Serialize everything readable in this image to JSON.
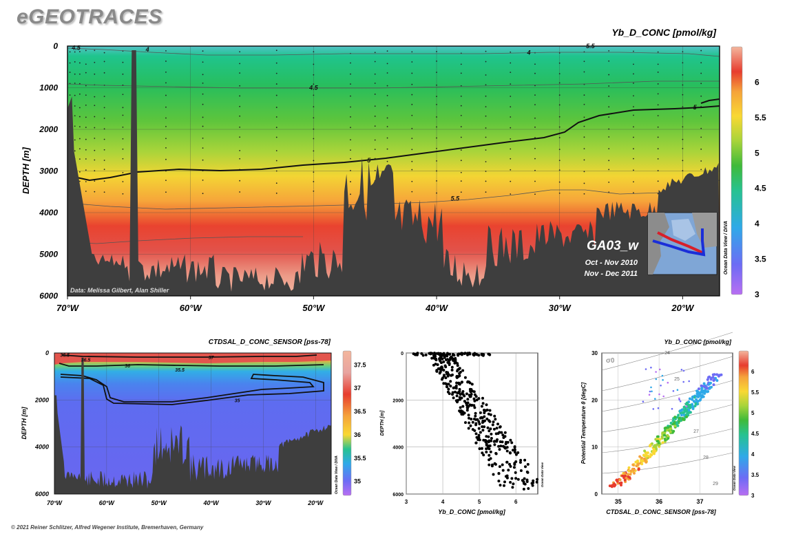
{
  "app": {
    "brand": "eGEOTRACES",
    "footer": "© 2021 Reiner Schlitzer, Alfred Wegener Institute, Bremerhaven, Germany",
    "software_label": "Ocean Data View / DIVA",
    "software_label_short": "Ocean Data View"
  },
  "chart_data": [
    {
      "type": "heatmap",
      "title": "Yb_D_CONC [pmol/kg]",
      "xlabel": "",
      "ylabel": "DEPTH [m]",
      "x_ticks": [
        "70°W",
        "60°W",
        "50°W",
        "40°W",
        "30°W",
        "20°W"
      ],
      "y_ticks": [
        0,
        1000,
        2000,
        3000,
        4000,
        5000,
        6000
      ],
      "xlim": [
        -70,
        -17
      ],
      "ylim": [
        0,
        6000
      ],
      "colorbar": {
        "ticks": [
          3,
          3.5,
          4,
          4.5,
          5,
          5.5,
          6
        ],
        "range": [
          3,
          6.5
        ]
      },
      "contour_labels": [
        {
          "text": "4.5",
          "lon": -69.3,
          "depth": 40
        },
        {
          "text": "4",
          "lon": -63.5,
          "depth": 80
        },
        {
          "text": "4",
          "lon": -32.5,
          "depth": 160
        },
        {
          "text": "5.5",
          "lon": -27.5,
          "depth": 0
        },
        {
          "text": "4.5",
          "lon": -50,
          "depth": 1000
        },
        {
          "text": "5",
          "lon": -19,
          "depth": 1470
        },
        {
          "text": "5",
          "lon": -45.5,
          "depth": 2740
        },
        {
          "text": "5.5",
          "lon": -38.5,
          "depth": 3660
        }
      ],
      "annotations": {
        "credit": "Data: Melissa Gilbert, Alan Shiller",
        "section": "GA03_w",
        "period1": "Oct - Nov 2010",
        "period2": "Nov - Dec 2011"
      }
    },
    {
      "type": "heatmap",
      "title": "CTDSAL_D_CONC_SENSOR [pss-78]",
      "xlabel": "",
      "ylabel": "DEPTH [m]",
      "x_ticks": [
        "70°W",
        "60°W",
        "50°W",
        "40°W",
        "30°W",
        "20°W"
      ],
      "y_ticks": [
        0,
        2000,
        4000,
        6000
      ],
      "xlim": [
        -70,
        -17
      ],
      "ylim": [
        0,
        6000
      ],
      "colorbar": {
        "ticks": [
          35,
          35.5,
          36,
          36.5,
          37,
          37.5
        ],
        "range": [
          34.7,
          37.8
        ]
      },
      "contour_labels": [
        {
          "text": "36.5",
          "lon": -68,
          "depth": 80
        },
        {
          "text": "36.5",
          "lon": -64,
          "depth": 280
        },
        {
          "text": "37",
          "lon": -40,
          "depth": 180
        },
        {
          "text": "36",
          "lon": -56,
          "depth": 520
        },
        {
          "text": "35.5",
          "lon": -46,
          "depth": 700
        },
        {
          "text": "35",
          "lon": -35,
          "depth": 2000
        }
      ]
    },
    {
      "type": "scatter",
      "title": "",
      "xlabel": "Yb_D_CONC [pmol/kg]",
      "ylabel": "DEPTH [m]",
      "x_ticks": [
        3,
        4,
        5,
        6
      ],
      "y_ticks": [
        0,
        2000,
        4000,
        6000
      ],
      "xlim": [
        3,
        6.6
      ],
      "ylim": [
        0,
        6000
      ]
    },
    {
      "type": "scatter",
      "title": "Yb_D_CONC [pmol/kg]",
      "xlabel": "CTDSAL_D_CONC_SENSOR [pss-78]",
      "ylabel": "Potential Temperature θ [degC]",
      "x_ticks": [
        35,
        36,
        37
      ],
      "y_ticks": [
        0,
        10,
        20,
        30
      ],
      "xlim": [
        34.6,
        37.8
      ],
      "ylim": [
        0,
        30
      ],
      "sigma_label": "σ0",
      "isopycnal_labels": [
        "24",
        "25",
        "26",
        "27",
        "28",
        "29"
      ],
      "colorbar": {
        "ticks": [
          3,
          3.5,
          4,
          4.5,
          5,
          5.5,
          6
        ],
        "range": [
          3,
          6.5
        ]
      }
    }
  ]
}
